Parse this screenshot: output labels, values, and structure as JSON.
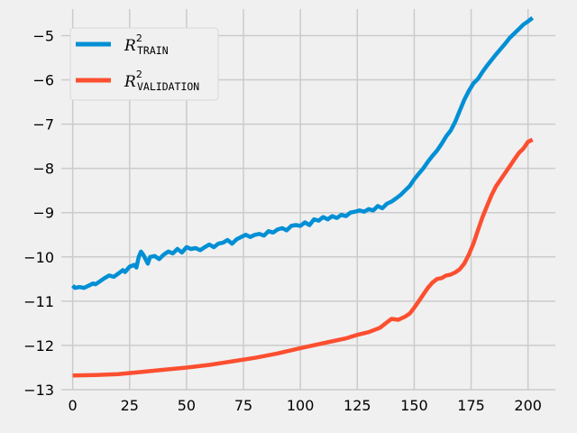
{
  "chart_data": {
    "type": "line",
    "style": "fivethirtyeight",
    "xlim": [
      -5,
      212
    ],
    "ylim": [
      -13,
      -4.4
    ],
    "xticks": [
      0,
      25,
      50,
      75,
      100,
      125,
      150,
      175,
      200
    ],
    "yticks": [
      -13,
      -12,
      -11,
      -10,
      -9,
      -8,
      -7,
      -6,
      -5
    ],
    "xtick_labels": [
      "0",
      "25",
      "50",
      "75",
      "100",
      "125",
      "150",
      "175",
      "200"
    ],
    "ytick_labels": [
      "−13",
      "−12",
      "−11",
      "−10",
      "−9",
      "−8",
      "−7",
      "−6",
      "−5"
    ],
    "grid": true,
    "legend_position": "upper-left",
    "series": [
      {
        "name": "R²_TRAIN",
        "legend_main": "R",
        "legend_sup": "2",
        "legend_sub": "TRAIN",
        "color": "#008fd5",
        "points": [
          [
            0,
            -10.65
          ],
          [
            1,
            -10.7
          ],
          [
            3,
            -10.68
          ],
          [
            5,
            -10.7
          ],
          [
            7,
            -10.65
          ],
          [
            9,
            -10.6
          ],
          [
            10,
            -10.62
          ],
          [
            12,
            -10.55
          ],
          [
            14,
            -10.48
          ],
          [
            16,
            -10.42
          ],
          [
            18,
            -10.45
          ],
          [
            20,
            -10.38
          ],
          [
            22,
            -10.3
          ],
          [
            23,
            -10.34
          ],
          [
            25,
            -10.22
          ],
          [
            27,
            -10.18
          ],
          [
            28,
            -10.24
          ],
          [
            29,
            -10.0
          ],
          [
            30,
            -9.88
          ],
          [
            31,
            -9.95
          ],
          [
            32,
            -10.05
          ],
          [
            33,
            -10.15
          ],
          [
            34,
            -10.0
          ],
          [
            36,
            -9.98
          ],
          [
            38,
            -10.05
          ],
          [
            40,
            -9.95
          ],
          [
            42,
            -9.88
          ],
          [
            44,
            -9.92
          ],
          [
            46,
            -9.82
          ],
          [
            48,
            -9.9
          ],
          [
            50,
            -9.78
          ],
          [
            52,
            -9.82
          ],
          [
            54,
            -9.8
          ],
          [
            56,
            -9.85
          ],
          [
            58,
            -9.78
          ],
          [
            60,
            -9.72
          ],
          [
            62,
            -9.78
          ],
          [
            64,
            -9.7
          ],
          [
            66,
            -9.68
          ],
          [
            68,
            -9.62
          ],
          [
            70,
            -9.7
          ],
          [
            72,
            -9.6
          ],
          [
            74,
            -9.55
          ],
          [
            76,
            -9.5
          ],
          [
            78,
            -9.55
          ],
          [
            80,
            -9.5
          ],
          [
            82,
            -9.48
          ],
          [
            84,
            -9.52
          ],
          [
            86,
            -9.42
          ],
          [
            88,
            -9.45
          ],
          [
            90,
            -9.38
          ],
          [
            92,
            -9.35
          ],
          [
            94,
            -9.4
          ],
          [
            96,
            -9.3
          ],
          [
            98,
            -9.28
          ],
          [
            100,
            -9.3
          ],
          [
            102,
            -9.22
          ],
          [
            104,
            -9.28
          ],
          [
            106,
            -9.15
          ],
          [
            108,
            -9.18
          ],
          [
            110,
            -9.1
          ],
          [
            112,
            -9.15
          ],
          [
            114,
            -9.08
          ],
          [
            116,
            -9.12
          ],
          [
            118,
            -9.05
          ],
          [
            120,
            -9.08
          ],
          [
            122,
            -9.0
          ],
          [
            124,
            -8.98
          ],
          [
            126,
            -8.95
          ],
          [
            128,
            -8.98
          ],
          [
            130,
            -8.92
          ],
          [
            132,
            -8.95
          ],
          [
            134,
            -8.85
          ],
          [
            136,
            -8.9
          ],
          [
            138,
            -8.8
          ],
          [
            140,
            -8.75
          ],
          [
            142,
            -8.68
          ],
          [
            144,
            -8.6
          ],
          [
            146,
            -8.5
          ],
          [
            148,
            -8.4
          ],
          [
            150,
            -8.25
          ],
          [
            152,
            -8.12
          ],
          [
            154,
            -8.0
          ],
          [
            156,
            -7.85
          ],
          [
            158,
            -7.72
          ],
          [
            160,
            -7.6
          ],
          [
            162,
            -7.45
          ],
          [
            164,
            -7.28
          ],
          [
            166,
            -7.15
          ],
          [
            168,
            -6.95
          ],
          [
            170,
            -6.7
          ],
          [
            172,
            -6.45
          ],
          [
            174,
            -6.25
          ],
          [
            176,
            -6.08
          ],
          [
            178,
            -5.98
          ],
          [
            180,
            -5.82
          ],
          [
            182,
            -5.68
          ],
          [
            184,
            -5.55
          ],
          [
            186,
            -5.42
          ],
          [
            188,
            -5.3
          ],
          [
            190,
            -5.18
          ],
          [
            192,
            -5.05
          ],
          [
            194,
            -4.95
          ],
          [
            196,
            -4.85
          ],
          [
            198,
            -4.75
          ],
          [
            200,
            -4.68
          ],
          [
            202,
            -4.6
          ]
        ]
      },
      {
        "name": "R²_VALIDATION",
        "legend_main": "R",
        "legend_sup": "2",
        "legend_sub": "VALIDATION",
        "color": "#fc4f30",
        "points": [
          [
            0,
            -12.68
          ],
          [
            10,
            -12.67
          ],
          [
            20,
            -12.65
          ],
          [
            30,
            -12.6
          ],
          [
            40,
            -12.55
          ],
          [
            50,
            -12.5
          ],
          [
            60,
            -12.44
          ],
          [
            70,
            -12.36
          ],
          [
            80,
            -12.28
          ],
          [
            90,
            -12.18
          ],
          [
            100,
            -12.06
          ],
          [
            110,
            -11.95
          ],
          [
            120,
            -11.84
          ],
          [
            125,
            -11.76
          ],
          [
            130,
            -11.7
          ],
          [
            135,
            -11.6
          ],
          [
            138,
            -11.48
          ],
          [
            140,
            -11.4
          ],
          [
            143,
            -11.42
          ],
          [
            146,
            -11.35
          ],
          [
            148,
            -11.28
          ],
          [
            150,
            -11.15
          ],
          [
            152,
            -11.0
          ],
          [
            154,
            -10.85
          ],
          [
            156,
            -10.7
          ],
          [
            158,
            -10.58
          ],
          [
            160,
            -10.5
          ],
          [
            162,
            -10.48
          ],
          [
            164,
            -10.42
          ],
          [
            166,
            -10.4
          ],
          [
            168,
            -10.35
          ],
          [
            170,
            -10.28
          ],
          [
            172,
            -10.15
          ],
          [
            174,
            -9.95
          ],
          [
            176,
            -9.7
          ],
          [
            178,
            -9.4
          ],
          [
            180,
            -9.1
          ],
          [
            182,
            -8.85
          ],
          [
            184,
            -8.6
          ],
          [
            186,
            -8.4
          ],
          [
            188,
            -8.25
          ],
          [
            190,
            -8.1
          ],
          [
            192,
            -7.95
          ],
          [
            194,
            -7.8
          ],
          [
            196,
            -7.65
          ],
          [
            198,
            -7.55
          ],
          [
            200,
            -7.4
          ],
          [
            202,
            -7.35
          ]
        ]
      }
    ]
  }
}
